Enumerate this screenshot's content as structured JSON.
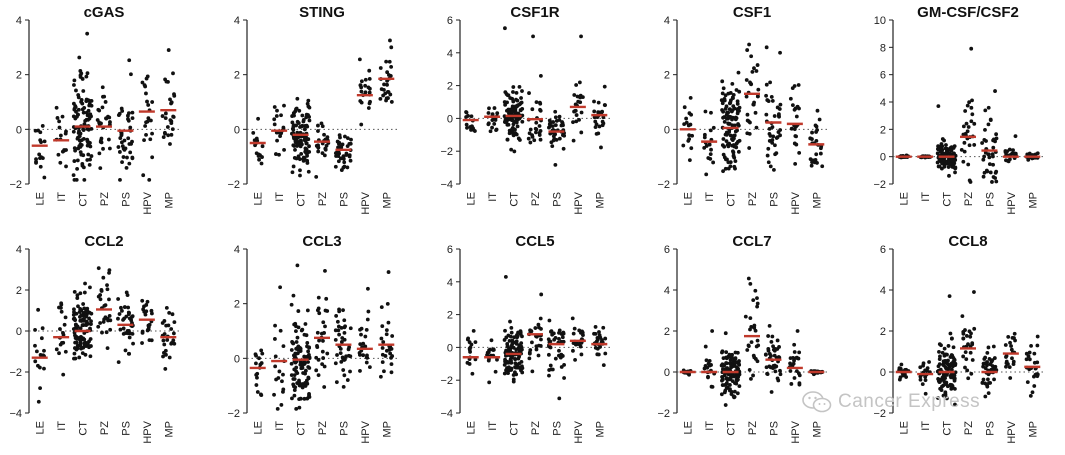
{
  "watermark": {
    "text": "Cancer Express",
    "icon": "wechat-icon"
  },
  "colors": {
    "point": "#111111",
    "median": "#c0392b",
    "axis": "#222222",
    "zero_line": "#555555"
  },
  "chart_data": [
    {
      "type": "scatter",
      "title": "cGAS",
      "categories": [
        "LE",
        "IT",
        "CT",
        "PZ",
        "PS",
        "HPV",
        "MP"
      ],
      "ylim": [
        -2,
        4
      ],
      "yticks": [
        -2,
        0,
        2,
        4
      ],
      "medians": [
        -0.6,
        -0.4,
        0.1,
        0.1,
        -0.05,
        0.65,
        0.7
      ],
      "spread": [
        0.6,
        0.8,
        1.0,
        0.7,
        0.8,
        0.9,
        0.8
      ],
      "counts": [
        16,
        18,
        110,
        28,
        40,
        22,
        26
      ],
      "max_points": [
        null,
        null,
        3.5,
        null,
        null,
        null,
        2.9
      ]
    },
    {
      "type": "scatter",
      "title": "STING",
      "categories": [
        "LE",
        "IT",
        "CT",
        "PZ",
        "PS",
        "HPV",
        "MP"
      ],
      "ylim": [
        -2,
        4
      ],
      "yticks": [
        -2,
        0,
        2,
        4
      ],
      "medians": [
        -0.5,
        -0.05,
        -0.2,
        -0.45,
        -0.75,
        1.25,
        1.85
      ],
      "spread": [
        0.5,
        0.6,
        0.6,
        0.5,
        0.4,
        0.5,
        0.5
      ],
      "counts": [
        16,
        18,
        110,
        28,
        40,
        22,
        26
      ],
      "max_points": [
        null,
        null,
        null,
        null,
        null,
        null,
        3.0
      ]
    },
    {
      "type": "scatter",
      "title": "CSF1R",
      "categories": [
        "LE",
        "IT",
        "CT",
        "PZ",
        "PS",
        "HPV",
        "MP"
      ],
      "ylim": [
        -4,
        6
      ],
      "yticks": [
        -4,
        -2,
        0,
        2,
        4,
        6
      ],
      "medians": [
        -0.1,
        0.1,
        0.15,
        -0.05,
        -0.8,
        0.7,
        0.2
      ],
      "spread": [
        0.5,
        0.5,
        0.8,
        0.9,
        0.7,
        1.0,
        0.6
      ],
      "counts": [
        16,
        18,
        110,
        28,
        40,
        22,
        26
      ],
      "max_points": [
        null,
        null,
        5.5,
        5.0,
        null,
        5.0,
        null
      ]
    },
    {
      "type": "scatter",
      "title": "CSF1",
      "categories": [
        "LE",
        "IT",
        "CT",
        "PZ",
        "PS",
        "HPV",
        "MP"
      ],
      "ylim": [
        -2,
        4
      ],
      "yticks": [
        -2,
        0,
        2,
        4
      ],
      "medians": [
        0.0,
        -0.45,
        0.05,
        1.3,
        0.25,
        0.2,
        -0.55
      ],
      "spread": [
        0.6,
        0.6,
        0.8,
        0.8,
        0.9,
        0.8,
        0.6
      ],
      "counts": [
        16,
        18,
        110,
        28,
        40,
        22,
        26
      ],
      "max_points": [
        null,
        null,
        null,
        2.9,
        3.0,
        null,
        null
      ]
    },
    {
      "type": "scatter",
      "title": "GM-CSF/CSF2",
      "categories": [
        "LE",
        "IT",
        "CT",
        "PZ",
        "PS",
        "HPV",
        "MP"
      ],
      "ylim": [
        -2,
        10
      ],
      "yticks": [
        -2,
        0,
        2,
        4,
        6,
        8,
        10
      ],
      "medians": [
        0.0,
        0.0,
        0.0,
        1.45,
        0.45,
        0.0,
        0.0
      ],
      "spread": [
        0.04,
        0.04,
        0.5,
        1.7,
        1.2,
        0.3,
        0.15
      ],
      "counts": [
        16,
        18,
        110,
        28,
        40,
        22,
        26
      ],
      "max_points": [
        null,
        null,
        3.7,
        7.9,
        4.8,
        1.5,
        null
      ]
    },
    {
      "type": "scatter",
      "title": "CCL2",
      "categories": [
        "LE",
        "IT",
        "CT",
        "PZ",
        "PS",
        "HPV",
        "MP"
      ],
      "ylim": [
        -4,
        4
      ],
      "yticks": [
        -4,
        -2,
        0,
        2,
        4
      ],
      "medians": [
        -1.3,
        -0.3,
        0.0,
        1.05,
        0.3,
        0.55,
        -0.3
      ],
      "spread": [
        0.8,
        0.8,
        0.9,
        0.9,
        0.8,
        0.7,
        0.7
      ],
      "counts": [
        16,
        18,
        110,
        28,
        40,
        22,
        26
      ],
      "max_points": [
        null,
        null,
        null,
        2.6,
        null,
        null,
        null
      ]
    },
    {
      "type": "scatter",
      "title": "CCL3",
      "categories": [
        "LE",
        "IT",
        "CT",
        "PZ",
        "PS",
        "HPV",
        "MP"
      ],
      "ylim": [
        -2,
        4
      ],
      "yticks": [
        -2,
        0,
        2,
        4
      ],
      "medians": [
        -0.35,
        -0.1,
        -0.05,
        0.75,
        0.5,
        0.35,
        0.5
      ],
      "spread": [
        0.8,
        0.8,
        0.9,
        1.0,
        0.8,
        0.7,
        0.8
      ],
      "counts": [
        16,
        18,
        110,
        28,
        40,
        22,
        26
      ],
      "max_points": [
        null,
        2.6,
        3.4,
        3.2,
        null,
        null,
        null
      ]
    },
    {
      "type": "scatter",
      "title": "CCL5",
      "categories": [
        "LE",
        "IT",
        "CT",
        "PZ",
        "PS",
        "HPV",
        "MP"
      ],
      "ylim": [
        -4,
        6
      ],
      "yticks": [
        -4,
        -2,
        0,
        2,
        4,
        6
      ],
      "medians": [
        -0.6,
        -0.6,
        -0.4,
        0.8,
        0.2,
        0.4,
        0.2
      ],
      "spread": [
        0.9,
        0.5,
        0.8,
        0.9,
        0.8,
        0.6,
        0.6
      ],
      "counts": [
        16,
        18,
        110,
        28,
        40,
        22,
        26
      ],
      "max_points": [
        null,
        null,
        4.3,
        null,
        null,
        null,
        null
      ]
    },
    {
      "type": "scatter",
      "title": "CCL7",
      "categories": [
        "LE",
        "IT",
        "CT",
        "PZ",
        "PS",
        "HPV",
        "MP"
      ],
      "ylim": [
        -2,
        6
      ],
      "yticks": [
        -2,
        0,
        2,
        4,
        6
      ],
      "medians": [
        0.0,
        0.0,
        0.0,
        1.75,
        0.6,
        0.2,
        0.0
      ],
      "spread": [
        0.05,
        0.5,
        0.6,
        1.2,
        0.7,
        0.6,
        0.05
      ],
      "counts": [
        16,
        18,
        110,
        28,
        40,
        22,
        26
      ],
      "max_points": [
        null,
        2.0,
        null,
        4.3,
        null,
        2.0,
        null
      ]
    },
    {
      "type": "scatter",
      "title": "CCL8",
      "categories": [
        "LE",
        "IT",
        "CT",
        "PZ",
        "PS",
        "HPV",
        "MP"
      ],
      "ylim": [
        -2,
        6
      ],
      "yticks": [
        -2,
        0,
        2,
        4,
        6
      ],
      "medians": [
        0.0,
        -0.1,
        0.0,
        1.15,
        0.0,
        0.9,
        0.25
      ],
      "spread": [
        0.2,
        0.3,
        0.8,
        1.0,
        0.7,
        0.7,
        0.7
      ],
      "counts": [
        16,
        18,
        110,
        28,
        40,
        22,
        26
      ],
      "max_points": [
        null,
        null,
        3.7,
        3.9,
        null,
        null,
        null
      ]
    }
  ]
}
